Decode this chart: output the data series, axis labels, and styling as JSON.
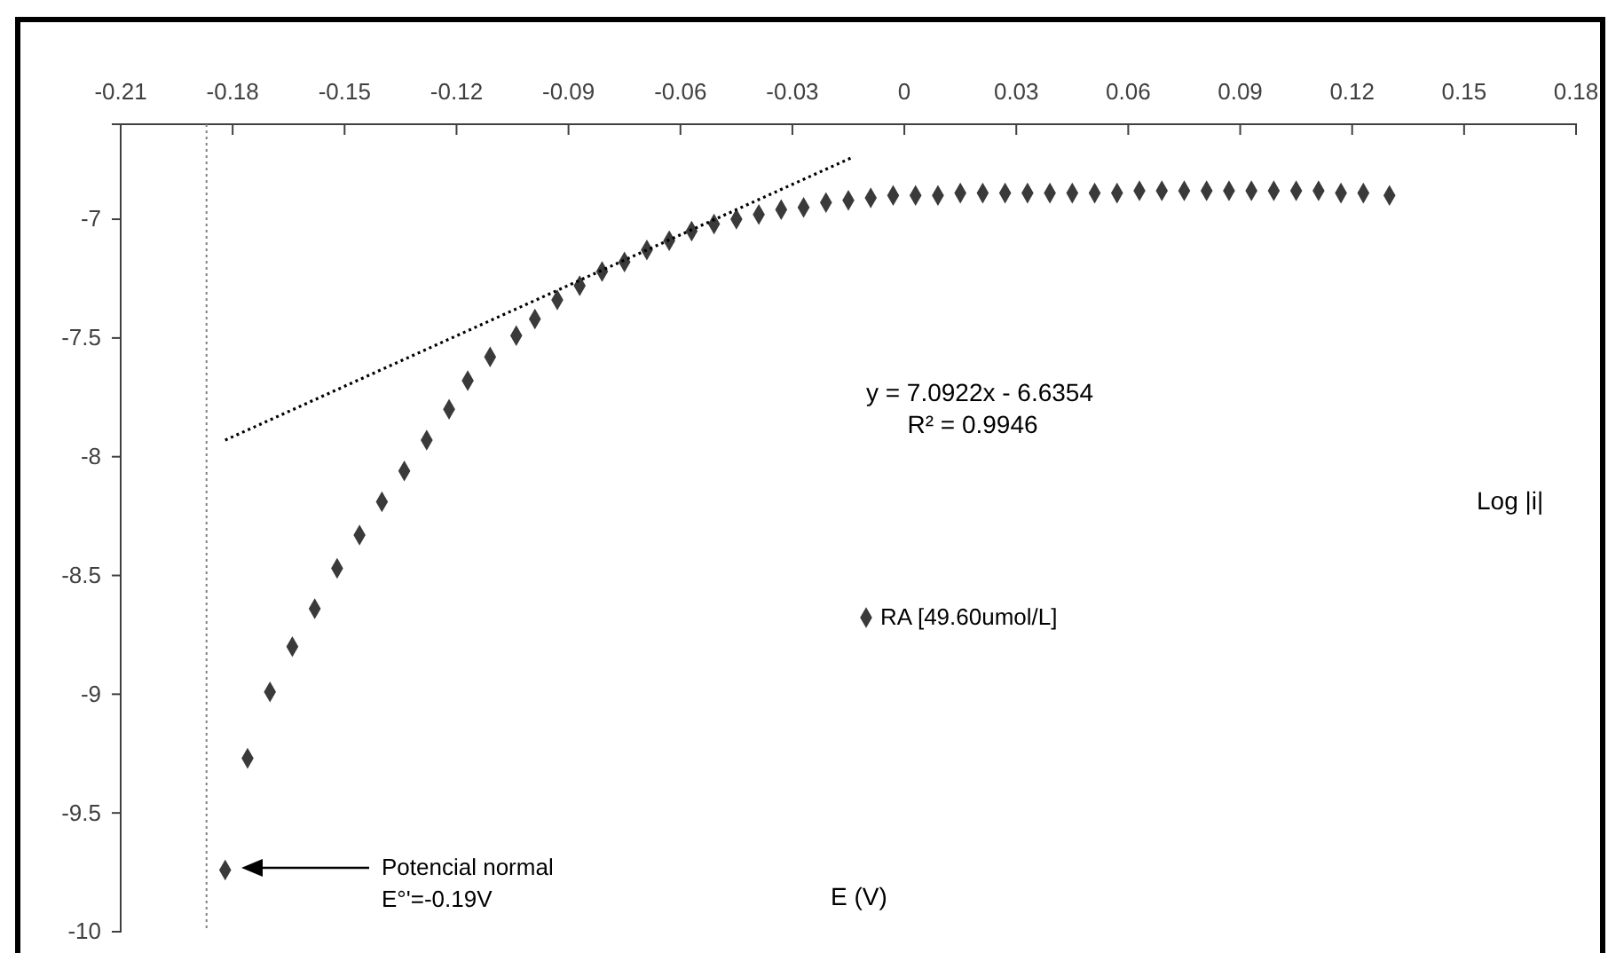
{
  "chart_data": {
    "type": "scatter",
    "xlabel": "E (V)",
    "ylabel": "Log |i|",
    "xlim": [
      -0.21,
      0.18
    ],
    "xticks": [
      -0.21,
      -0.18,
      -0.15,
      -0.12,
      -0.09,
      -0.06,
      -0.03,
      0,
      0.03,
      0.06,
      0.09,
      0.12,
      0.15,
      0.18
    ],
    "ylim": [
      -10,
      -6.6
    ],
    "yticks": [
      -10,
      -9.5,
      -9,
      -8.5,
      -8,
      -7.5,
      -7
    ],
    "legend": "center",
    "grid": false,
    "series": [
      {
        "name": "RA [49.60umol/L]",
        "marker": "diamond",
        "color": "#3a3a3a",
        "x": [
          -0.182,
          -0.176,
          -0.17,
          -0.164,
          -0.158,
          -0.152,
          -0.146,
          -0.14,
          -0.134,
          -0.128,
          -0.122,
          -0.117,
          -0.111,
          -0.104,
          -0.099,
          -0.093,
          -0.087,
          -0.081,
          -0.075,
          -0.069,
          -0.063,
          -0.057,
          -0.051,
          -0.045,
          -0.039,
          -0.033,
          -0.027,
          -0.021,
          -0.015,
          -0.009,
          -0.003,
          0.003,
          0.009,
          0.015,
          0.021,
          0.027,
          0.033,
          0.039,
          0.045,
          0.051,
          0.057,
          0.063,
          0.069,
          0.075,
          0.081,
          0.087,
          0.093,
          0.099,
          0.105,
          0.111,
          0.117,
          0.123,
          0.13
        ],
        "values": [
          -9.74,
          -9.27,
          -8.99,
          -8.8,
          -8.64,
          -8.47,
          -8.33,
          -8.19,
          -8.06,
          -7.93,
          -7.8,
          -7.68,
          -7.58,
          -7.49,
          -7.42,
          -7.34,
          -7.28,
          -7.22,
          -7.18,
          -7.13,
          -7.09,
          -7.05,
          -7.02,
          -7.0,
          -6.98,
          -6.96,
          -6.95,
          -6.93,
          -6.92,
          -6.91,
          -6.9,
          -6.9,
          -6.9,
          -6.89,
          -6.89,
          -6.89,
          -6.89,
          -6.89,
          -6.89,
          -6.89,
          -6.89,
          -6.88,
          -6.88,
          -6.88,
          -6.88,
          -6.88,
          -6.88,
          -6.88,
          -6.88,
          -6.88,
          -6.89,
          -6.89,
          -6.9
        ]
      },
      {
        "type": "line",
        "marker": "none",
        "color": "#000000",
        "line_style": "dotted",
        "x": [
          -0.182,
          -0.014
        ],
        "values": [
          -7.93,
          -6.74
        ]
      }
    ],
    "ref_lines": [
      {
        "axis": "x",
        "value": -0.187,
        "color": "#808080",
        "line_style": "dotted"
      }
    ],
    "annotations": [
      "y = 7.0922x - 6.6354",
      "R² = 0.9946",
      "Potencial normal",
      "E°'=-0.19V"
    ]
  }
}
